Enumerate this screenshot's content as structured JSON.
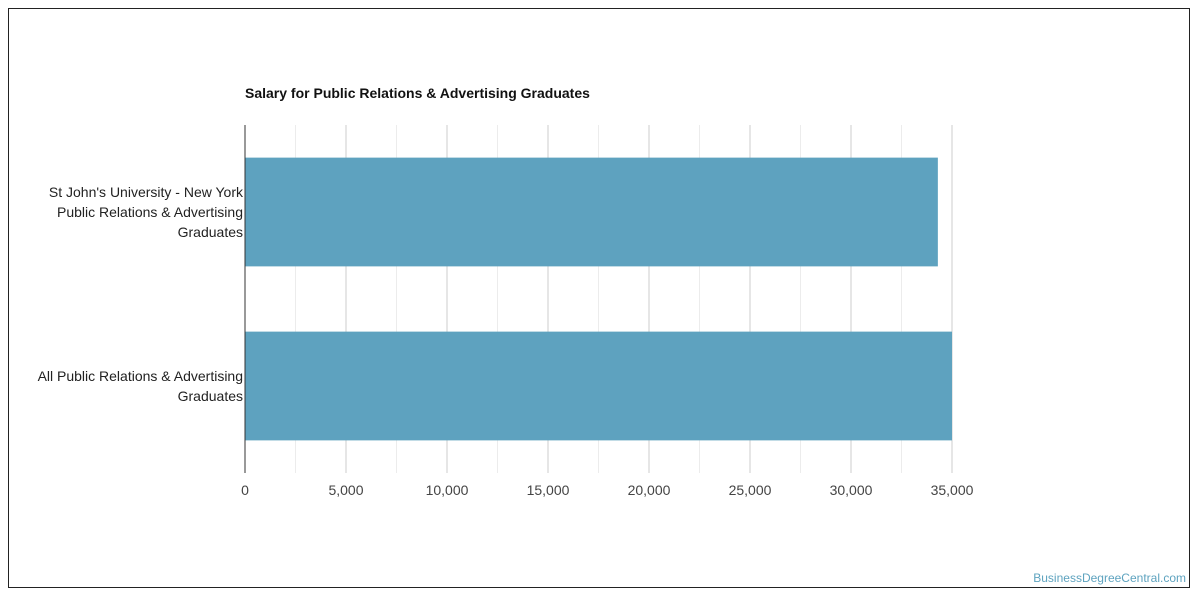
{
  "chart_data": {
    "type": "bar",
    "orientation": "horizontal",
    "title": "Salary for Public Relations & Advertising Graduates",
    "categories": [
      "St John's University - New York Public Relations & Advertising Graduates",
      "All Public Relations & Advertising Graduates"
    ],
    "category_label_lines": [
      [
        "St John's University - New York",
        "Public Relations & Advertising",
        "Graduates"
      ],
      [
        "All Public Relations & Advertising",
        "Graduates"
      ]
    ],
    "values": [
      34300,
      35000
    ],
    "xlim": [
      0,
      35000
    ],
    "xticks": [
      0,
      5000,
      10000,
      15000,
      20000,
      25000,
      30000,
      35000
    ],
    "xtick_labels": [
      "0",
      "5,000",
      "10,000",
      "15,000",
      "20,000",
      "25,000",
      "30,000",
      "35,000"
    ],
    "grid": true,
    "bar_color": "#5ea2bf"
  },
  "watermark": "BusinessDegreeCentral.com"
}
